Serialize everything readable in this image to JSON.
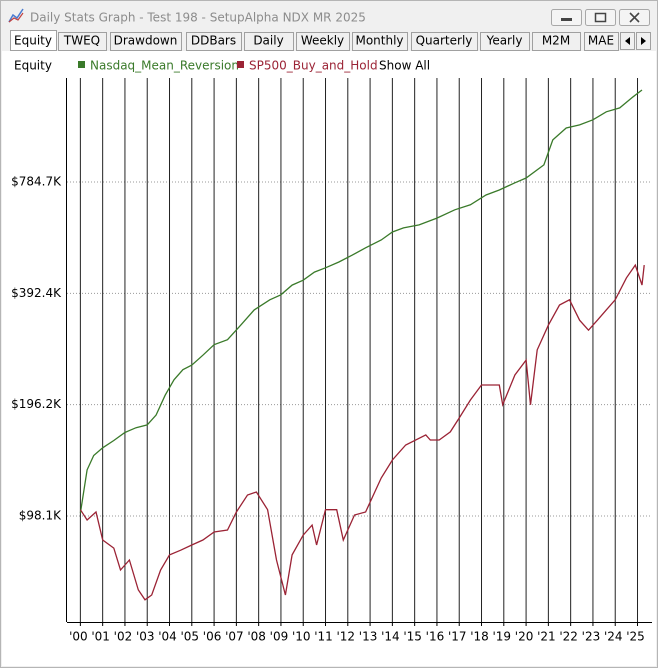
{
  "window": {
    "title": "Daily Stats Graph - Test 198 - SetupAlpha NDX MR 2025"
  },
  "tabs": [
    "Equity",
    "TWEQ",
    "Drawdown",
    "DDBars",
    "Daily",
    "Weekly",
    "Monthly",
    "Quarterly",
    "Yearly",
    "M2M",
    "MAE"
  ],
  "active_tab": 0,
  "legend": {
    "label": "Equity",
    "show_all": "Show All"
  },
  "chart_data": {
    "type": "line",
    "log_scale": true,
    "grid": true,
    "xlim": [
      1999.4,
      2025.65
    ],
    "ylim": [
      50700,
      1500000
    ],
    "xticks": [
      {
        "value": 2000,
        "label": "'00"
      },
      {
        "value": 2001,
        "label": "'01"
      },
      {
        "value": 2002,
        "label": "'02"
      },
      {
        "value": 2003,
        "label": "'03"
      },
      {
        "value": 2004,
        "label": "'04"
      },
      {
        "value": 2005,
        "label": "'05"
      },
      {
        "value": 2006,
        "label": "'06"
      },
      {
        "value": 2007,
        "label": "'07"
      },
      {
        "value": 2008,
        "label": "'08"
      },
      {
        "value": 2009,
        "label": "'09"
      },
      {
        "value": 2010,
        "label": "'10"
      },
      {
        "value": 2011,
        "label": "'11"
      },
      {
        "value": 2012,
        "label": "'12"
      },
      {
        "value": 2013,
        "label": "'13"
      },
      {
        "value": 2014,
        "label": "'14"
      },
      {
        "value": 2015,
        "label": "'15"
      },
      {
        "value": 2016,
        "label": "'16"
      },
      {
        "value": 2017,
        "label": "'17"
      },
      {
        "value": 2018,
        "label": "'18"
      },
      {
        "value": 2019,
        "label": "'19"
      },
      {
        "value": 2020,
        "label": "'20"
      },
      {
        "value": 2021,
        "label": "'21"
      },
      {
        "value": 2022,
        "label": "'22"
      },
      {
        "value": 2023,
        "label": "'23"
      },
      {
        "value": 2024,
        "label": "'24"
      },
      {
        "value": 2025,
        "label": "'25"
      }
    ],
    "yticks": [
      {
        "value": 98100,
        "label": "$98.1K"
      },
      {
        "value": 196200,
        "label": "$196.2K"
      },
      {
        "value": 392400,
        "label": "$392.4K"
      },
      {
        "value": 784700,
        "label": "$784.7K"
      }
    ],
    "series": [
      {
        "name": "Nasdaq_Mean_Reversion",
        "color": "#3a7a2a",
        "x": [
          2000.0,
          2000.3,
          2000.6,
          2001.0,
          2001.5,
          2002.0,
          2002.5,
          2003.0,
          2003.4,
          2003.8,
          2004.2,
          2004.6,
          2005.0,
          2005.5,
          2006.0,
          2006.6,
          2007.2,
          2007.8,
          2008.5,
          2009.0,
          2009.5,
          2010.0,
          2010.5,
          2011.0,
          2011.6,
          2012.2,
          2012.8,
          2013.5,
          2014.0,
          2014.5,
          2015.2,
          2016.0,
          2016.8,
          2017.5,
          2018.2,
          2018.8,
          2019.5,
          2020.0,
          2020.8,
          2021.2,
          2021.8,
          2022.4,
          2023.0,
          2023.6,
          2024.2,
          2024.8,
          2025.2
        ],
        "values": [
          100000,
          130700,
          143000,
          150000,
          157000,
          165000,
          170000,
          173000,
          184000,
          208000,
          229000,
          244000,
          251000,
          267000,
          285000,
          294000,
          322000,
          354000,
          377000,
          389000,
          413000,
          426000,
          448000,
          460000,
          477000,
          498000,
          521000,
          547000,
          575000,
          590000,
          601000,
          627000,
          660000,
          681000,
          724000,
          747000,
          781000,
          805000,
          873000,
          1020000,
          1099000,
          1120000,
          1156000,
          1215000,
          1245000,
          1334000,
          1392000
        ]
      },
      {
        "name": "SP500_Buy_and_Hold",
        "color": "#9b2335",
        "x": [
          2000.0,
          2000.3,
          2000.7,
          2001.0,
          2001.5,
          2001.8,
          2002.2,
          2002.6,
          2002.9,
          2003.2,
          2003.6,
          2004.0,
          2004.5,
          2005.0,
          2005.5,
          2006.0,
          2006.6,
          2007.0,
          2007.5,
          2007.9,
          2008.4,
          2008.8,
          2009.2,
          2009.5,
          2010.0,
          2010.4,
          2010.6,
          2011.0,
          2011.5,
          2011.8,
          2012.3,
          2012.8,
          2013.5,
          2014.0,
          2014.6,
          2015.5,
          2015.7,
          2016.1,
          2016.6,
          2017.0,
          2017.5,
          2018.0,
          2018.8,
          2018.95,
          2019.5,
          2020.0,
          2020.2,
          2020.5,
          2021.0,
          2021.5,
          2021.95,
          2022.4,
          2022.8,
          2023.2,
          2023.6,
          2024.0,
          2024.5,
          2024.9,
          2025.2,
          2025.3
        ],
        "values": [
          102000,
          95700,
          100600,
          84500,
          80300,
          70100,
          74600,
          61900,
          58200,
          60000,
          70100,
          77000,
          79300,
          81900,
          84500,
          88800,
          89900,
          100600,
          111800,
          113900,
          102000,
          74600,
          60000,
          77000,
          87100,
          92700,
          81900,
          102000,
          102000,
          84500,
          98700,
          100600,
          124300,
          139000,
          152600,
          162500,
          157500,
          157500,
          165600,
          180600,
          202000,
          221800,
          221800,
          196200,
          236000,
          259000,
          196000,
          276000,
          322000,
          365000,
          377000,
          332000,
          312000,
          332000,
          354000,
          377000,
          432000,
          468000,
          413000,
          468000
        ]
      }
    ]
  }
}
